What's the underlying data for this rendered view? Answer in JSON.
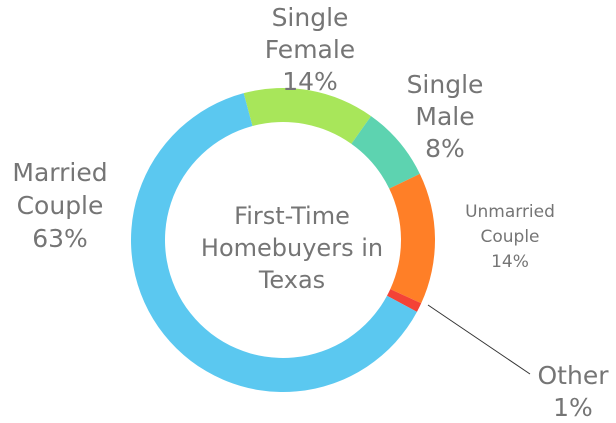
{
  "chart_data": {
    "type": "donut",
    "title": "First-Time Homebuyers in Texas",
    "categories": [
      "Single Female",
      "Single Male",
      "Unmarried Couple",
      "Other",
      "Married Couple"
    ],
    "values": [
      14,
      8,
      14,
      1,
      63
    ],
    "value_labels": [
      "14%",
      "8%",
      "14%",
      "1%",
      "63%"
    ],
    "colors": [
      "#a8e65a",
      "#5dd3b0",
      "#ff7f27",
      "#f44336",
      "#5bc8f0"
    ]
  }
}
